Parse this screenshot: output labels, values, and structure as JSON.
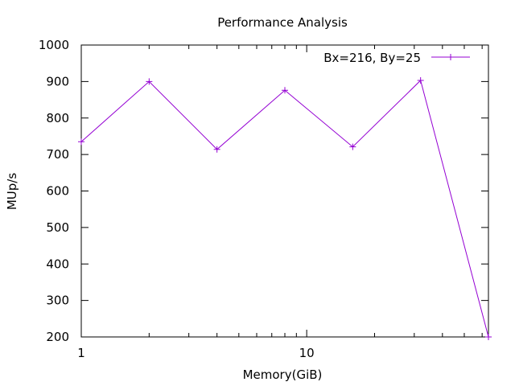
{
  "chart_data": {
    "type": "line",
    "title": "Performance Analysis",
    "xlabel": "Memory(GiB)",
    "ylabel": "MUp/s",
    "xscale": "log",
    "xlim": [
      1,
      64
    ],
    "ylim": [
      200,
      1000
    ],
    "x_tick_labels": [
      "1",
      "10"
    ],
    "y_tick_labels": [
      "200",
      "300",
      "400",
      "500",
      "600",
      "700",
      "800",
      "900",
      "1000"
    ],
    "legend_position": "top-right",
    "grid": false,
    "series": [
      {
        "name": "Bx=216, By=25",
        "color": "#9400d3",
        "marker": "plus",
        "x": [
          1,
          2,
          4,
          8,
          16,
          32,
          64
        ],
        "y": [
          735,
          900,
          714,
          876,
          721,
          903,
          200
        ]
      }
    ]
  }
}
